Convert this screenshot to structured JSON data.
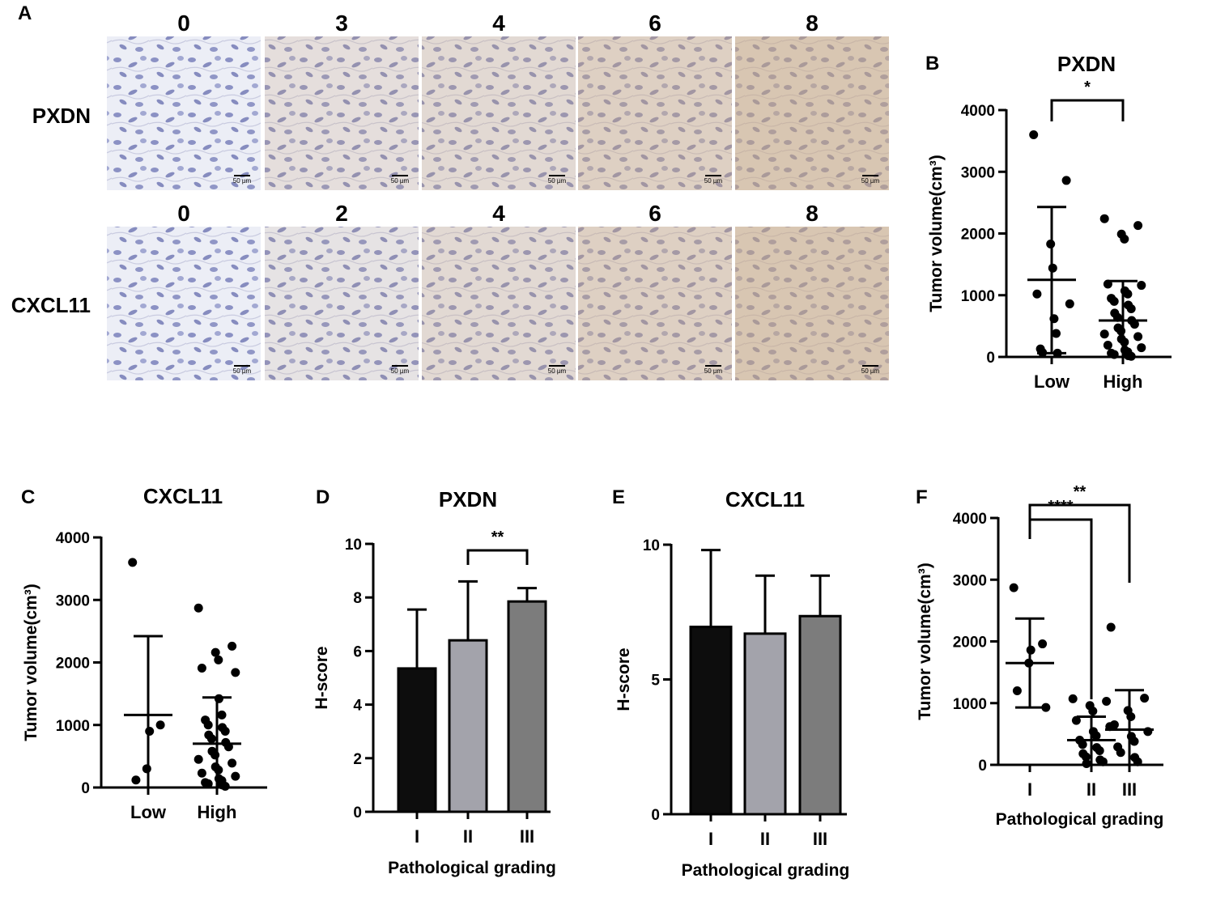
{
  "panel_a": {
    "letter": "A",
    "rows": [
      {
        "label": "PXDN",
        "scores": [
          "0",
          "3",
          "4",
          "6",
          "8"
        ]
      },
      {
        "label": "CXCL11",
        "scores": [
          "0",
          "2",
          "4",
          "6",
          "8"
        ]
      }
    ],
    "scale_bar_label": "50 µm"
  },
  "colors": {
    "tissue_background": "#eef0f6",
    "nuclei": "#5c63a8",
    "dab_stain": "#c9a57a",
    "bar_grade_I": "#0d0d0d",
    "bar_grade_II": "#a3a3ab",
    "bar_grade_III": "#7c7c7c"
  },
  "chart_data": [
    {
      "panel": "B",
      "type": "scatter",
      "title": "PXDN",
      "ylabel": "Tumor volume(cm³)",
      "xlabel": "",
      "categories": [
        "Low",
        "High"
      ],
      "ylim": [
        0,
        4000
      ],
      "yticks": [
        0,
        1000,
        2000,
        3000,
        4000
      ],
      "series": [
        {
          "category": "Low",
          "mean": 1250,
          "sd_upper": 2430,
          "sd_lower": 60,
          "points": [
            3600,
            2860,
            1830,
            1440,
            1020,
            860,
            620,
            380,
            130,
            70,
            60
          ]
        },
        {
          "category": "High",
          "mean": 590,
          "sd_upper": 1230,
          "sd_lower": 0,
          "points": [
            2240,
            2130,
            1990,
            1910,
            1180,
            1160,
            1070,
            1020,
            950,
            900,
            840,
            780,
            710,
            640,
            590,
            530,
            470,
            420,
            370,
            330,
            290,
            240,
            190,
            150,
            110,
            80,
            60,
            40,
            20,
            10
          ]
        }
      ],
      "significance": [
        {
          "between": [
            "Low",
            "High"
          ],
          "label": "*"
        }
      ]
    },
    {
      "panel": "C",
      "type": "scatter",
      "title": "CXCL11",
      "ylabel": "Tumor volume(cm³)",
      "xlabel": "",
      "categories": [
        "Low",
        "High"
      ],
      "ylim": [
        0,
        4000
      ],
      "yticks": [
        0,
        1000,
        2000,
        3000,
        4000
      ],
      "series": [
        {
          "category": "Low",
          "mean": 1160,
          "sd_upper": 2420,
          "sd_lower": 0,
          "points": [
            3600,
            1000,
            900,
            300,
            120
          ]
        },
        {
          "category": "High",
          "mean": 700,
          "sd_upper": 1440,
          "sd_lower": 0,
          "points": [
            2870,
            2260,
            2160,
            2040,
            1910,
            1840,
            1420,
            1160,
            1080,
            1000,
            960,
            900,
            840,
            780,
            720,
            650,
            580,
            520,
            450,
            390,
            330,
            280,
            230,
            180,
            140,
            110,
            80,
            60,
            40,
            20
          ]
        }
      ],
      "significance": []
    },
    {
      "panel": "D",
      "type": "bar",
      "title": "PXDN",
      "ylabel": "H-score",
      "xlabel": "Pathological grading",
      "categories": [
        "I",
        "II",
        "III"
      ],
      "values": [
        5.35,
        6.4,
        7.85
      ],
      "errors_upper": [
        7.55,
        8.6,
        8.35
      ],
      "ylim": [
        0,
        10
      ],
      "yticks": [
        0,
        2,
        4,
        6,
        8,
        10
      ],
      "significance": [
        {
          "between": [
            "II",
            "III"
          ],
          "label": "**"
        }
      ]
    },
    {
      "panel": "E",
      "type": "bar",
      "title": "CXCL11",
      "ylabel": "H-score",
      "xlabel": "Pathological grading",
      "categories": [
        "I",
        "II",
        "III"
      ],
      "values": [
        6.95,
        6.7,
        7.35
      ],
      "errors_upper": [
        9.8,
        8.85,
        8.85
      ],
      "ylim": [
        0,
        10
      ],
      "yticks": [
        0,
        5,
        10
      ],
      "significance": []
    },
    {
      "panel": "F",
      "type": "scatter",
      "title": "",
      "ylabel": "Tumor volume(cm³)",
      "xlabel": "Pathological grading",
      "categories": [
        "I",
        "II",
        "III"
      ],
      "ylim": [
        0,
        4000
      ],
      "yticks": [
        0,
        1000,
        2000,
        3000,
        4000
      ],
      "series": [
        {
          "category": "I",
          "mean": 1650,
          "sd_upper": 2370,
          "sd_lower": 930,
          "points": [
            2870,
            1960,
            1860,
            1650,
            1200,
            930
          ]
        },
        {
          "category": "II",
          "mean": 400,
          "sd_upper": 780,
          "sd_lower": 0,
          "points": [
            1070,
            1030,
            960,
            870,
            720,
            620,
            540,
            470,
            400,
            330,
            280,
            230,
            180,
            130,
            80,
            50,
            20
          ]
        },
        {
          "category": "III",
          "mean": 570,
          "sd_upper": 1210,
          "sd_lower": 0,
          "points": [
            2230,
            1080,
            880,
            780,
            650,
            540,
            460,
            380,
            290,
            200,
            120,
            50
          ]
        }
      ],
      "significance": [
        {
          "between": [
            "I",
            "II"
          ],
          "label": "****"
        },
        {
          "between": [
            "I",
            "III"
          ],
          "label": "**"
        }
      ]
    }
  ]
}
